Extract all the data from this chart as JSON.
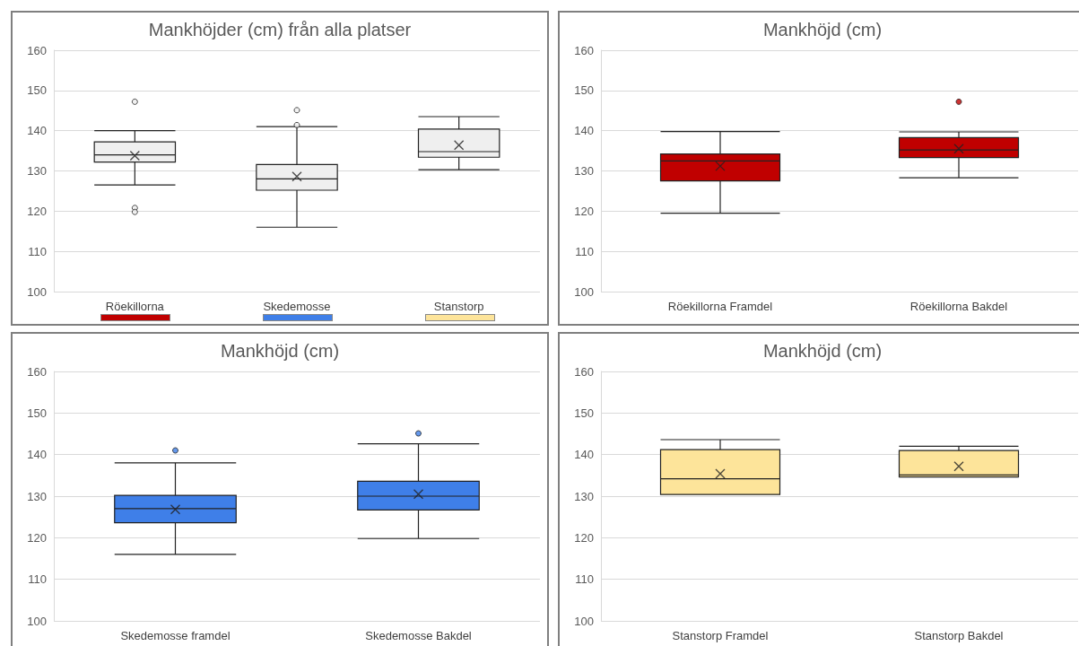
{
  "chart_data": [
    {
      "type": "box",
      "title": "Mankhöjder (cm) från alla platser",
      "categories": [
        "Röekillorna",
        "Skedemosse",
        "Stanstorp"
      ],
      "ylim": [
        100,
        160
      ],
      "yticks": [
        100,
        110,
        120,
        130,
        140,
        150,
        160
      ],
      "grid": "y",
      "series": [
        {
          "color": "#efefef",
          "boxes": [
            {
              "low": 126.5,
              "q1": 132.2,
              "median": 134,
              "q3": 137.2,
              "high": 140,
              "mean": 133.8,
              "outliers": [
                147.2,
                120.8,
                119.8
              ]
            },
            {
              "low": 116,
              "q1": 125.2,
              "median": 128,
              "q3": 131.6,
              "high": 141,
              "mean": 128.6,
              "outliers": [
                145.1,
                141.4
              ]
            },
            {
              "low": 130.3,
              "q1": 133.4,
              "median": 134.8,
              "q3": 140.4,
              "high": 143.5,
              "mean": 136.4
            }
          ]
        }
      ]
    },
    {
      "type": "box",
      "title": "Mankhöjd (cm)",
      "categories": [
        "Röekillorna Framdel",
        "Röekillorna Bakdel"
      ],
      "ylim": [
        100,
        160
      ],
      "yticks": [
        100,
        110,
        120,
        130,
        140,
        150,
        160
      ],
      "grid": "y",
      "series": [
        {
          "color": "#c00000",
          "boxes": [
            {
              "low": 119.5,
              "q1": 127.5,
              "median": 132.5,
              "q3": 134.2,
              "high": 139.8,
              "mean": 131.2
            },
            {
              "low": 128.3,
              "q1": 133.3,
              "median": 135.2,
              "q3": 138.3,
              "high": 139.7,
              "mean": 135.5,
              "outliers": [
                147.2
              ]
            }
          ]
        }
      ]
    },
    {
      "type": "box",
      "title": "Mankhöjd (cm)",
      "categories": [
        "Skedemosse framdel",
        "Skedemosse Bakdel"
      ],
      "ylim": [
        100,
        160
      ],
      "yticks": [
        100,
        110,
        120,
        130,
        140,
        150,
        160
      ],
      "grid": "y",
      "series": [
        {
          "color": "#3f7fe8",
          "boxes": [
            {
              "low": 116,
              "q1": 123.6,
              "median": 127,
              "q3": 130.2,
              "high": 138,
              "mean": 126.8,
              "outliers": [
                141
              ]
            },
            {
              "low": 119.8,
              "q1": 126.7,
              "median": 130,
              "q3": 133.6,
              "high": 142.6,
              "mean": 130.5,
              "outliers": [
                145.1
              ]
            }
          ]
        }
      ]
    },
    {
      "type": "box",
      "title": "Mankhöjd (cm)",
      "categories": [
        "Stanstorp Framdel",
        "Stanstorp Bakdel"
      ],
      "ylim": [
        100,
        160
      ],
      "yticks": [
        100,
        110,
        120,
        130,
        140,
        150,
        160
      ],
      "grid": "y",
      "series": [
        {
          "color": "#fde49a",
          "boxes": [
            {
              "low": 130.4,
              "q1": 130.4,
              "median": 134.2,
              "q3": 141.2,
              "high": 143.6,
              "mean": 135.4
            },
            {
              "low": 134.6,
              "q1": 134.6,
              "median": 135.1,
              "q3": 141,
              "high": 142,
              "mean": 137.2
            }
          ]
        }
      ]
    }
  ]
}
